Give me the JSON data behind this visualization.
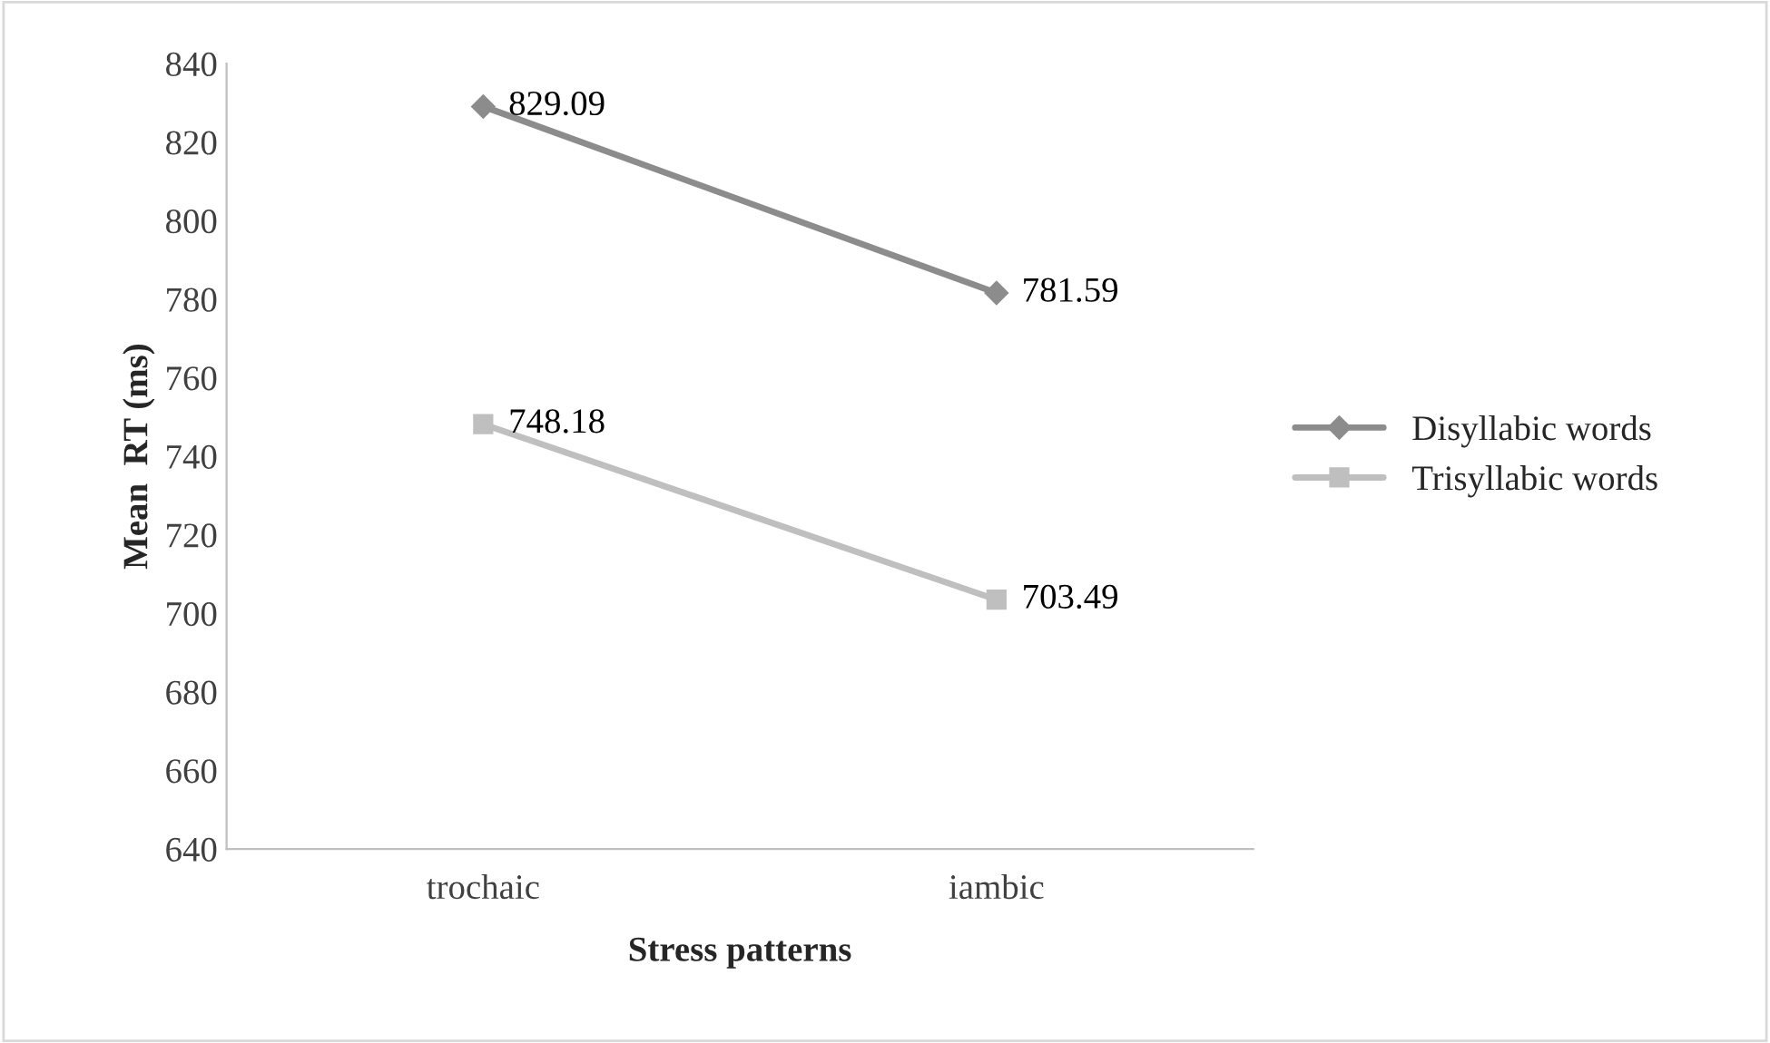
{
  "chart_data": {
    "type": "line",
    "xlabel": "Stress patterns",
    "ylabel": "Mean  RT (ms)",
    "categories": [
      "trochaic",
      "iambic"
    ],
    "series": [
      {
        "name": "Disyllabic words",
        "color": "#8c8c8c",
        "marker": "diamond",
        "values": [
          829.09,
          781.59
        ]
      },
      {
        "name": "Trisyllabic words",
        "color": "#bfbfbf",
        "marker": "square",
        "values": [
          748.18,
          703.49
        ]
      }
    ],
    "ylim": [
      640,
      840
    ],
    "yticks": [
      640,
      660,
      680,
      700,
      720,
      740,
      760,
      780,
      800,
      820,
      840
    ],
    "data_labels": true,
    "legend": "right",
    "grid": false,
    "line_style": "solid"
  }
}
